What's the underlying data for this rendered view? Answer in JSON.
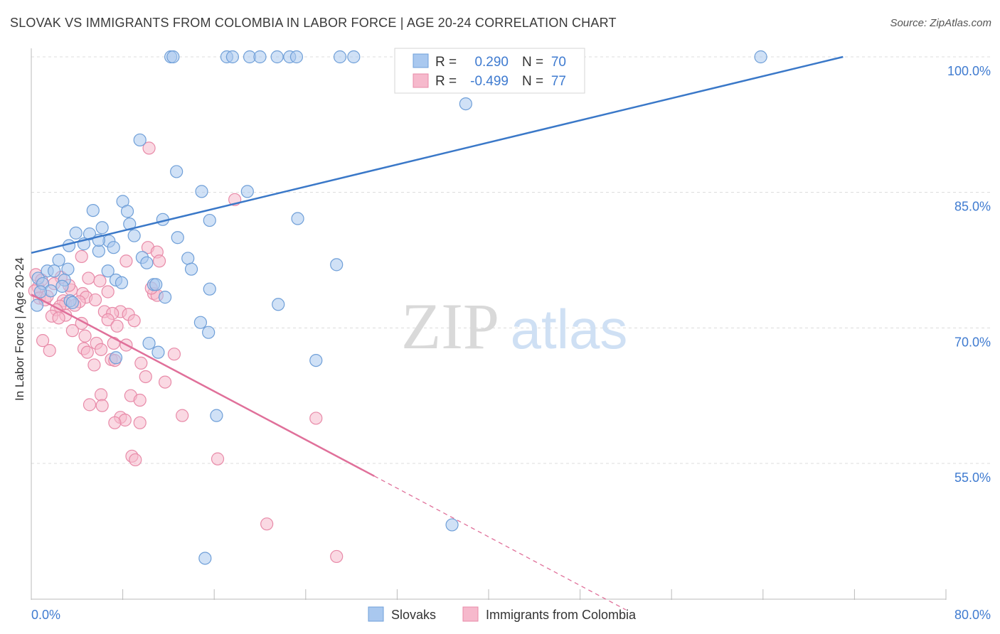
{
  "title": "SLOVAK VS IMMIGRANTS FROM COLOMBIA IN LABOR FORCE | AGE 20-24 CORRELATION CHART",
  "source": "Source: ZipAtlas.com",
  "watermark": {
    "zip": "ZIP",
    "atlas": "atlas"
  },
  "colors": {
    "blue_fill": "#a9c8ef",
    "blue_stroke": "#6f9fd8",
    "blue_line": "#3a78c8",
    "pink_fill": "#f6b9cc",
    "pink_stroke": "#e88aa8",
    "pink_line": "#e0709a",
    "tick_text": "#3f7bd0",
    "grid": "#dcdcdc"
  },
  "chart_data": {
    "type": "scatter",
    "xlabel": "",
    "ylabel": "In Labor Force | Age 20-24",
    "xlim": [
      0,
      80
    ],
    "ylim": [
      40,
      102
    ],
    "x_tick_labels": [
      {
        "value": 0,
        "label": "0.0%"
      },
      {
        "value": 80,
        "label": "80.0%"
      }
    ],
    "y_tick_labels": [
      {
        "value": 100,
        "label": "100.0%"
      },
      {
        "value": 85,
        "label": "85.0%"
      },
      {
        "value": 70,
        "label": "70.0%"
      },
      {
        "value": 55,
        "label": "55.0%"
      }
    ],
    "y_gridlines": [
      101.5,
      86.5,
      71.5,
      56.5
    ],
    "legend": {
      "position": "top-center",
      "rows": [
        {
          "r_label": "R =",
          "r_value": "0.290",
          "n_label": "N =",
          "n_value": "70"
        },
        {
          "r_label": "R =",
          "r_value": "-0.499",
          "n_label": "N =",
          "n_value": "77"
        }
      ]
    },
    "series": [
      {
        "name": "Slovaks",
        "color": "blue",
        "trend": {
          "x0": 0,
          "y0": 79.8,
          "x1": 71,
          "y1": 101.5
        },
        "points": [
          [
            12.2,
            101.5
          ],
          [
            12.4,
            101.5
          ],
          [
            17.1,
            101.5
          ],
          [
            17.6,
            101.5
          ],
          [
            19.1,
            101.5
          ],
          [
            20.0,
            101.5
          ],
          [
            21.5,
            101.5
          ],
          [
            22.6,
            101.5
          ],
          [
            23.2,
            101.5
          ],
          [
            27.0,
            101.5
          ],
          [
            28.2,
            101.5
          ],
          [
            63.8,
            101.5
          ],
          [
            38.0,
            96.3
          ],
          [
            9.5,
            92.3
          ],
          [
            12.7,
            88.8
          ],
          [
            14.9,
            86.6
          ],
          [
            18.9,
            86.6
          ],
          [
            8.0,
            85.5
          ],
          [
            8.4,
            84.4
          ],
          [
            5.4,
            84.5
          ],
          [
            11.5,
            83.5
          ],
          [
            15.6,
            83.4
          ],
          [
            23.3,
            83.6
          ],
          [
            8.6,
            83.0
          ],
          [
            6.2,
            82.6
          ],
          [
            3.9,
            82.0
          ],
          [
            5.1,
            81.9
          ],
          [
            9.0,
            81.7
          ],
          [
            12.8,
            81.5
          ],
          [
            6.8,
            81.1
          ],
          [
            4.6,
            80.8
          ],
          [
            3.3,
            80.6
          ],
          [
            5.9,
            80.0
          ],
          [
            2.4,
            79.0
          ],
          [
            13.7,
            79.2
          ],
          [
            9.7,
            79.3
          ],
          [
            3.2,
            78.0
          ],
          [
            10.1,
            78.7
          ],
          [
            14.0,
            78.0
          ],
          [
            1.4,
            77.8
          ],
          [
            2.0,
            77.8
          ],
          [
            6.7,
            77.8
          ],
          [
            0.6,
            77.0
          ],
          [
            2.9,
            76.8
          ],
          [
            7.4,
            76.8
          ],
          [
            7.9,
            76.5
          ],
          [
            1.0,
            76.4
          ],
          [
            10.7,
            76.3
          ],
          [
            2.7,
            76.1
          ],
          [
            10.9,
            76.3
          ],
          [
            15.6,
            75.8
          ],
          [
            1.7,
            75.6
          ],
          [
            0.8,
            75.5
          ],
          [
            11.7,
            74.9
          ],
          [
            3.4,
            74.5
          ],
          [
            21.6,
            74.1
          ],
          [
            0.5,
            74.0
          ],
          [
            3.6,
            74.3
          ],
          [
            14.8,
            72.1
          ],
          [
            15.5,
            71.0
          ],
          [
            10.3,
            69.8
          ],
          [
            11.1,
            68.8
          ],
          [
            7.4,
            68.2
          ],
          [
            24.9,
            67.9
          ],
          [
            16.2,
            61.8
          ],
          [
            36.8,
            49.7
          ],
          [
            15.2,
            46.0
          ],
          [
            26.7,
            78.5
          ],
          [
            5.9,
            81.2
          ],
          [
            7.2,
            80.4
          ]
        ]
      },
      {
        "name": "Immigrants from Colombia",
        "color": "pink",
        "trend": {
          "x0": 0,
          "y0": 75.2,
          "x1": 30,
          "y1": 55.1
        },
        "trend_dashed": {
          "x0": 30,
          "y0": 55.1,
          "x1": 52,
          "y1": 40.3
        },
        "points": [
          [
            10.3,
            91.4
          ],
          [
            17.8,
            85.7
          ],
          [
            10.2,
            80.4
          ],
          [
            11.0,
            79.9
          ],
          [
            4.4,
            79.4
          ],
          [
            8.3,
            78.9
          ],
          [
            11.2,
            78.9
          ],
          [
            0.4,
            77.4
          ],
          [
            2.6,
            77.1
          ],
          [
            5.0,
            77.0
          ],
          [
            6.0,
            76.7
          ],
          [
            0.6,
            76.0
          ],
          [
            0.3,
            75.6
          ],
          [
            3.5,
            75.7
          ],
          [
            6.7,
            75.5
          ],
          [
            4.5,
            75.3
          ],
          [
            10.7,
            75.3
          ],
          [
            11.0,
            75.1
          ],
          [
            4.8,
            74.9
          ],
          [
            0.7,
            74.8
          ],
          [
            1.2,
            74.6
          ],
          [
            2.8,
            74.5
          ],
          [
            4.2,
            74.4
          ],
          [
            3.0,
            74.2
          ],
          [
            3.8,
            74.0
          ],
          [
            2.5,
            73.9
          ],
          [
            2.2,
            73.5
          ],
          [
            6.4,
            73.3
          ],
          [
            7.8,
            73.3
          ],
          [
            7.1,
            73.1
          ],
          [
            8.5,
            73.0
          ],
          [
            3.0,
            72.9
          ],
          [
            1.8,
            72.8
          ],
          [
            2.4,
            72.6
          ],
          [
            6.7,
            72.4
          ],
          [
            4.4,
            72.0
          ],
          [
            3.6,
            71.2
          ],
          [
            4.7,
            70.6
          ],
          [
            1.0,
            70.1
          ],
          [
            5.7,
            69.8
          ],
          [
            7.2,
            69.8
          ],
          [
            8.3,
            69.6
          ],
          [
            4.6,
            69.2
          ],
          [
            6.1,
            69.1
          ],
          [
            1.6,
            69.0
          ],
          [
            4.9,
            68.8
          ],
          [
            12.5,
            68.6
          ],
          [
            7.0,
            68.0
          ],
          [
            7.3,
            67.9
          ],
          [
            9.6,
            67.6
          ],
          [
            5.5,
            67.4
          ],
          [
            10.0,
            66.1
          ],
          [
            11.7,
            65.5
          ],
          [
            6.1,
            64.1
          ],
          [
            8.7,
            64.0
          ],
          [
            9.5,
            63.5
          ],
          [
            5.1,
            63.0
          ],
          [
            6.2,
            62.9
          ],
          [
            13.2,
            61.8
          ],
          [
            24.9,
            61.5
          ],
          [
            7.8,
            61.6
          ],
          [
            8.2,
            61.3
          ],
          [
            7.3,
            61.0
          ],
          [
            9.5,
            61.0
          ],
          [
            8.8,
            57.3
          ],
          [
            9.1,
            56.9
          ],
          [
            16.3,
            57.0
          ],
          [
            20.6,
            49.8
          ],
          [
            26.7,
            46.2
          ],
          [
            1.4,
            75.0
          ],
          [
            2.0,
            76.4
          ],
          [
            0.9,
            76.8
          ],
          [
            3.3,
            76.2
          ],
          [
            5.6,
            74.6
          ],
          [
            7.5,
            71.7
          ],
          [
            9.0,
            72.3
          ],
          [
            10.5,
            75.9
          ]
        ]
      }
    ]
  }
}
